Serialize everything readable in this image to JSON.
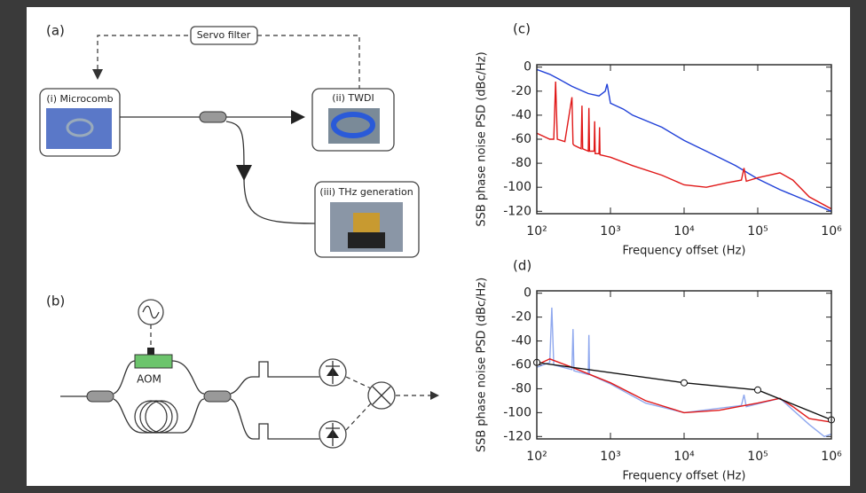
{
  "diagram_a": {
    "label": "(a)",
    "servo": "Servo filter",
    "nodes": [
      "(i) Microcomb",
      "(ii) TWDI",
      "(iii) THz generation"
    ]
  },
  "diagram_b": {
    "label": "(b)",
    "aom": "AOM"
  },
  "chart_data": [
    {
      "type": "line",
      "title": "(c)",
      "x_label": "Frequency offset (Hz)",
      "y_label": "SSB phase noise PSD (dBc/Hz)",
      "xscale": "log",
      "xlim": [
        100,
        1000000
      ],
      "xticks": [
        {
          "value": 100,
          "label": "10²"
        },
        {
          "value": 1000,
          "label": "10³"
        },
        {
          "value": 10000,
          "label": "10⁴"
        },
        {
          "value": 100000,
          "label": "10⁵"
        },
        {
          "value": 1000000,
          "label": "10⁶"
        }
      ],
      "ylim": [
        -122,
        2
      ],
      "yticks": [
        0,
        -20,
        -40,
        -60,
        -80,
        -100,
        -120
      ],
      "series": [
        {
          "color": "#2040d8",
          "x": [
            100,
            150,
            200,
            300,
            500,
            700,
            850,
            900,
            1000,
            1500,
            2000,
            5000,
            10000,
            20000,
            50000,
            100000,
            200000,
            500000,
            1000000
          ],
          "values": [
            -2,
            -6,
            -10,
            -16,
            -22,
            -24,
            -20,
            -14,
            -30,
            -35,
            -40,
            -50,
            -61,
            -70,
            -82,
            -93,
            -102,
            -112,
            -120
          ]
        },
        {
          "color": "#e01818",
          "x": [
            100,
            150,
            170,
            180,
            190,
            240,
            300,
            310,
            320,
            400,
            410,
            420,
            500,
            510,
            520,
            600,
            610,
            620,
            700,
            710,
            720,
            1000,
            2000,
            5000,
            10000,
            20000,
            40000,
            60000,
            65000,
            70000,
            100000,
            200000,
            300000,
            500000,
            1000000
          ],
          "values": [
            -55,
            -60,
            -60,
            -12,
            -60,
            -62,
            -25,
            -64,
            -65,
            -68,
            -32,
            -68,
            -70,
            -34,
            -70,
            -70,
            -45,
            -72,
            -72,
            -50,
            -73,
            -75,
            -82,
            -90,
            -98,
            -100,
            -96,
            -94,
            -84,
            -95,
            -92,
            -88,
            -94,
            -108,
            -118
          ]
        }
      ]
    },
    {
      "type": "line",
      "title": "(d)",
      "x_label": "Frequency offset (Hz)",
      "y_label": "SSB phase noise PSD (dBc/Hz)",
      "xscale": "log",
      "xlim": [
        100,
        1000000
      ],
      "xticks": [
        {
          "value": 100,
          "label": "10²"
        },
        {
          "value": 1000,
          "label": "10³"
        },
        {
          "value": 10000,
          "label": "10⁴"
        },
        {
          "value": 100000,
          "label": "10⁵"
        },
        {
          "value": 1000000,
          "label": "10⁶"
        }
      ],
      "ylim": [
        -122,
        2
      ],
      "yticks": [
        0,
        -20,
        -40,
        -60,
        -80,
        -100,
        -120
      ],
      "series": [
        {
          "color": "#8fa8ee",
          "x": [
            100,
            150,
            160,
            170,
            300,
            310,
            320,
            500,
            510,
            520,
            1000,
            3000,
            10000,
            60000,
            65000,
            70000,
            200000,
            500000,
            800000,
            1000000
          ],
          "values": [
            -62,
            -58,
            -12,
            -60,
            -64,
            -30,
            -65,
            -68,
            -35,
            -68,
            -76,
            -92,
            -100,
            -94,
            -85,
            -95,
            -88,
            -110,
            -120,
            -118
          ]
        },
        {
          "color": "#e01818",
          "x": [
            100,
            150,
            300,
            1000,
            3000,
            10000,
            30000,
            100000,
            200000,
            300000,
            500000,
            1000000
          ],
          "values": [
            -60,
            -55,
            -62,
            -75,
            -90,
            -100,
            -98,
            -92,
            -88,
            -95,
            -105,
            -108
          ]
        },
        {
          "color": "#111111",
          "marker": "circle",
          "x": [
            100,
            10000,
            100000,
            1000000
          ],
          "values": [
            -58,
            -75,
            -81,
            -106
          ]
        }
      ]
    }
  ]
}
